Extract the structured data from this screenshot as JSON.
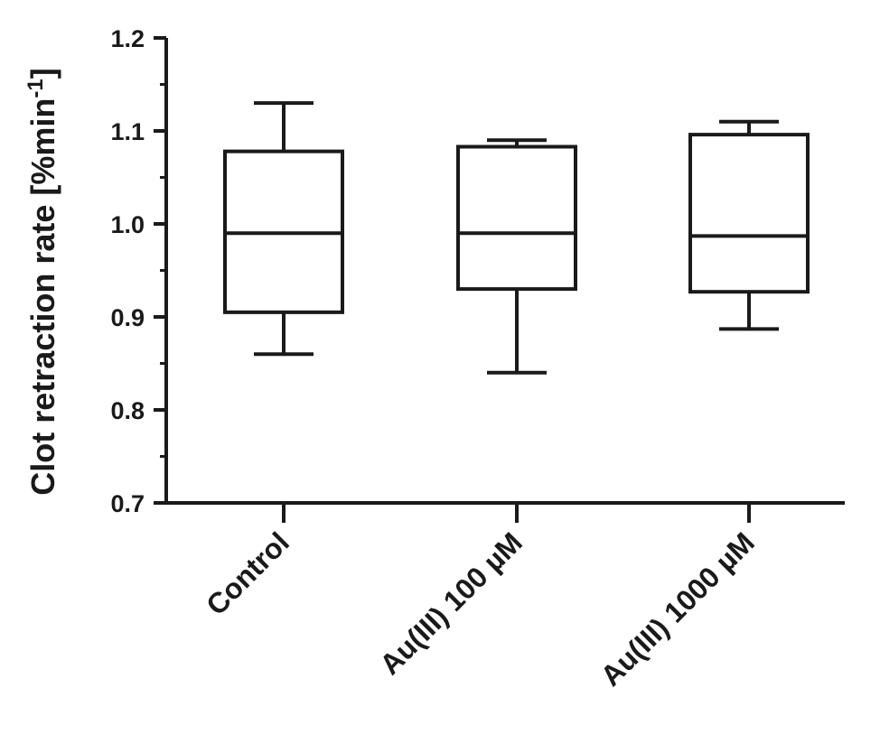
{
  "chart_data": {
    "type": "box",
    "title": "",
    "xlabel": "",
    "ylabel": "Clot retraction rate [%min",
    "ylabel_superscript": "-1",
    "ylabel_close": "]",
    "ylim": [
      0.7,
      1.2
    ],
    "yticks": [
      0.7,
      0.8,
      0.9,
      1.0,
      1.1,
      1.2
    ],
    "ytick_labels": [
      "0.7",
      "0.8",
      "0.9",
      "1.0",
      "1.1",
      "1.2"
    ],
    "categories": [
      "Control",
      "Au(III) 100 µM",
      "Au(III) 1000 µM"
    ],
    "boxes": [
      {
        "category": "Control",
        "whisker_low": 0.86,
        "q1": 0.905,
        "median": 0.99,
        "q3": 1.078,
        "whisker_high": 1.13
      },
      {
        "category": "Au(III) 100 µM",
        "whisker_low": 0.84,
        "q1": 0.93,
        "median": 0.99,
        "q3": 1.083,
        "whisker_high": 1.09
      },
      {
        "category": "Au(III) 1000 µM",
        "whisker_low": 0.887,
        "q1": 0.927,
        "median": 0.987,
        "q3": 1.096,
        "whisker_high": 1.11
      }
    ],
    "grid": false,
    "legend": "none"
  }
}
